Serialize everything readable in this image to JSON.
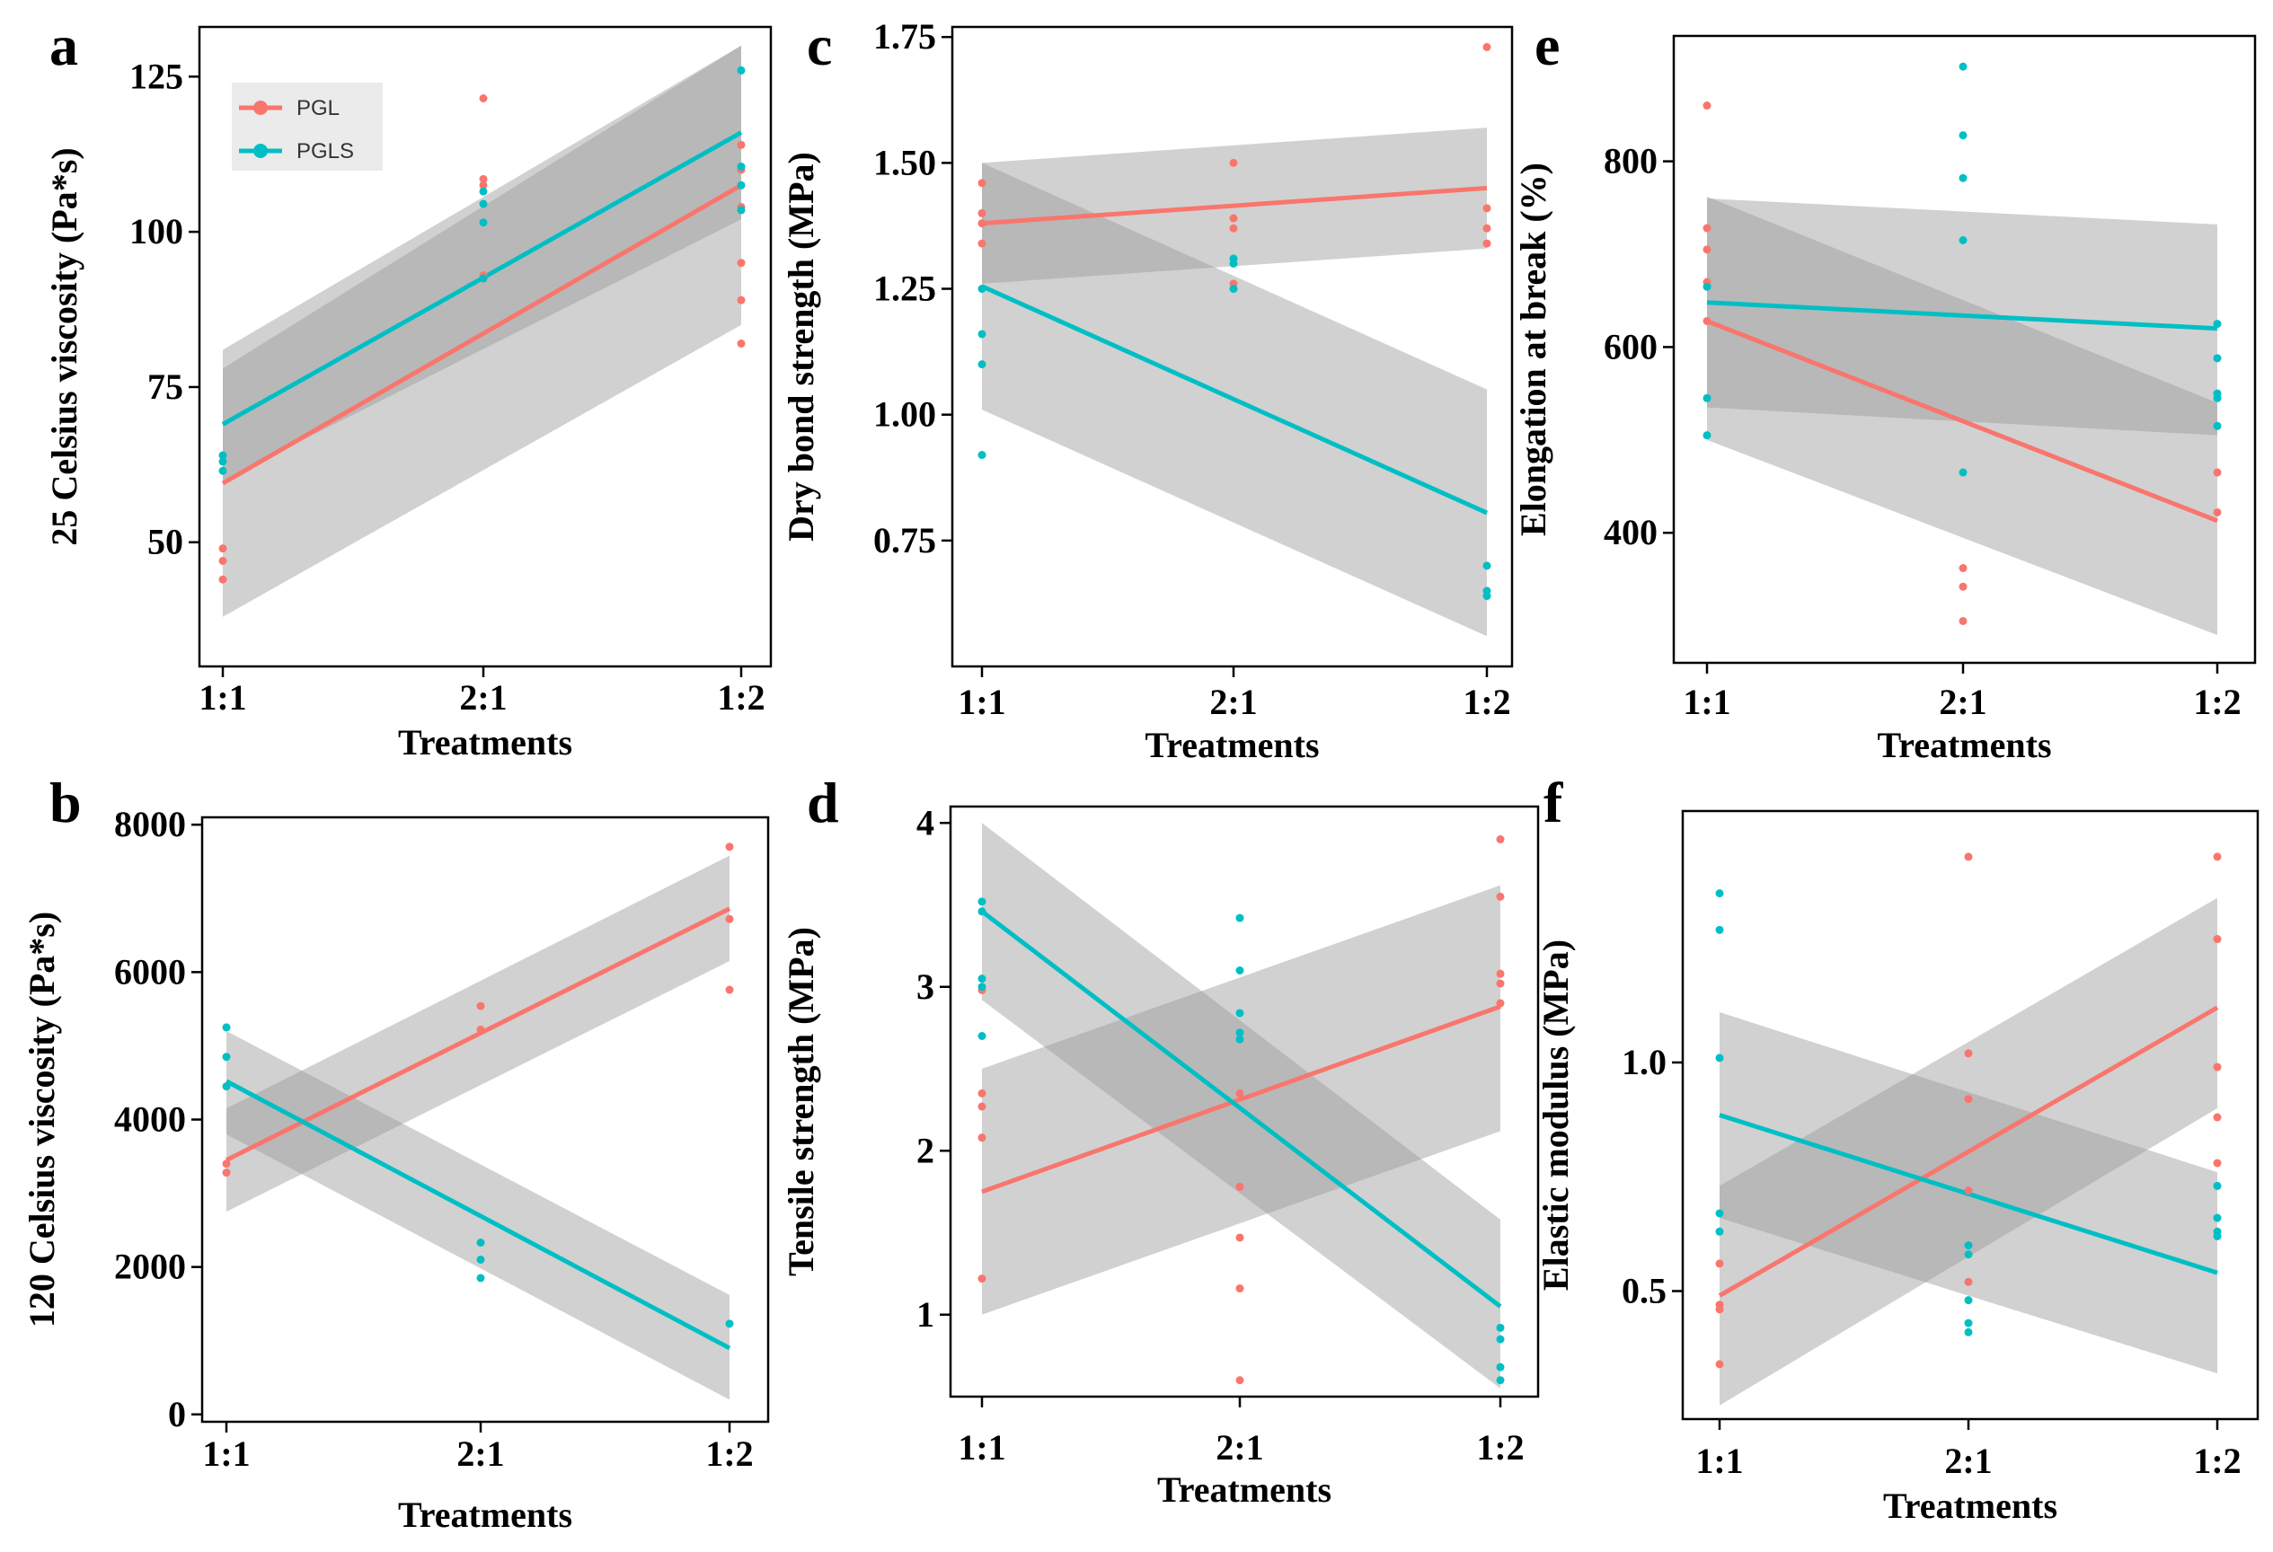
{
  "colors": {
    "pgl": "#F8766D",
    "pgls": "#00BFC4",
    "band": "#9a9a9a",
    "frame": "#000000"
  },
  "legend": {
    "items": [
      {
        "label": "PGL",
        "series": "PGL"
      },
      {
        "label": "PGLS",
        "series": "PGLS"
      }
    ]
  },
  "chart_data": [
    {
      "panel": "a",
      "type": "scatter",
      "xlabel": "Treatments",
      "ylabel": "25 Celsius viscosity (Pa*s)",
      "categories": [
        "1:1",
        "2:1",
        "1:2"
      ],
      "yticks": [
        50,
        75,
        100,
        125
      ],
      "ylim": [
        30,
        133
      ],
      "series": [
        {
          "name": "PGL",
          "points": [
            [
              1,
              49
            ],
            [
              1,
              47
            ],
            [
              1,
              44
            ],
            [
              2,
              121.5
            ],
            [
              2,
              108.5
            ],
            [
              2,
              107.5
            ],
            [
              2,
              93
            ],
            [
              3,
              114
            ],
            [
              3,
              110
            ],
            [
              3,
              104
            ],
            [
              3,
              95
            ],
            [
              3,
              89
            ],
            [
              3,
              82
            ]
          ],
          "fit": [
            59.5,
            107.5
          ],
          "ci_low": [
            38,
            85
          ],
          "ci_high": [
            81,
            130
          ]
        },
        {
          "name": "PGLS",
          "points": [
            [
              1,
              64
            ],
            [
              1,
              63
            ],
            [
              1,
              61.5
            ],
            [
              2,
              106.5
            ],
            [
              2,
              104.5
            ],
            [
              2,
              101.5
            ],
            [
              2,
              92.5
            ],
            [
              3,
              126
            ],
            [
              3,
              110.5
            ],
            [
              3,
              107.5
            ],
            [
              3,
              103.5
            ]
          ],
          "fit": [
            69,
            116
          ],
          "ci_low": [
            60,
            102
          ],
          "ci_high": [
            78,
            130
          ]
        }
      ]
    },
    {
      "panel": "b",
      "type": "scatter",
      "xlabel": "Treatments",
      "ylabel": "120 Celsius viscosity (Pa*s)",
      "categories": [
        "1:1",
        "2:1",
        "1:2"
      ],
      "yticks": [
        0,
        2000,
        4000,
        6000,
        8000
      ],
      "ylim": [
        -100,
        8100
      ],
      "series": [
        {
          "name": "PGL",
          "points": [
            [
              1,
              3400
            ],
            [
              1,
              3280
            ],
            [
              2,
              5540
            ],
            [
              2,
              5220
            ],
            [
              3,
              7700
            ],
            [
              3,
              6720
            ],
            [
              3,
              5760
            ]
          ],
          "fit": [
            3450,
            6860
          ],
          "ci_low": [
            2750,
            6150
          ],
          "ci_high": [
            4150,
            7580
          ]
        },
        {
          "name": "PGLS",
          "points": [
            [
              1,
              5250
            ],
            [
              1,
              4850
            ],
            [
              1,
              4450
            ],
            [
              2,
              2330
            ],
            [
              2,
              2100
            ],
            [
              2,
              1850
            ],
            [
              3,
              1230
            ]
          ],
          "fit": [
            4520,
            900
          ],
          "ci_low": [
            3800,
            200
          ],
          "ci_high": [
            5200,
            1620
          ]
        }
      ]
    },
    {
      "panel": "c",
      "type": "scatter",
      "xlabel": "Treatments",
      "ylabel": "Dry bond strength (MPa)",
      "categories": [
        "1:1",
        "2:1",
        "1:2"
      ],
      "yticks": [
        0.75,
        1.0,
        1.25,
        1.5,
        1.75
      ],
      "ylim": [
        0.5,
        1.77
      ],
      "series": [
        {
          "name": "PGL",
          "points": [
            [
              1,
              1.46
            ],
            [
              1,
              1.4
            ],
            [
              1,
              1.38
            ],
            [
              1,
              1.34
            ],
            [
              2,
              1.5
            ],
            [
              2,
              1.39
            ],
            [
              2,
              1.37
            ],
            [
              2,
              1.26
            ],
            [
              3,
              1.73
            ],
            [
              3,
              1.41
            ],
            [
              3,
              1.37
            ],
            [
              3,
              1.34
            ]
          ],
          "fit": [
            1.38,
            1.45
          ],
          "ci_low": [
            1.26,
            1.33
          ],
          "ci_high": [
            1.5,
            1.57
          ]
        },
        {
          "name": "PGLS",
          "points": [
            [
              1,
              1.25
            ],
            [
              1,
              1.16
            ],
            [
              1,
              1.1
            ],
            [
              1,
              0.92
            ],
            [
              2,
              1.31
            ],
            [
              2,
              1.3
            ],
            [
              2,
              1.25
            ],
            [
              3,
              0.7
            ],
            [
              3,
              0.65
            ],
            [
              3,
              0.64
            ]
          ],
          "fit": [
            1.255,
            0.805
          ],
          "ci_low": [
            1.01,
            0.56
          ],
          "ci_high": [
            1.5,
            1.05
          ]
        }
      ]
    },
    {
      "panel": "d",
      "type": "scatter",
      "xlabel": "Treatments",
      "ylabel": "Tensile strength (MPa)",
      "categories": [
        "1:1",
        "2:1",
        "1:2"
      ],
      "yticks": [
        1,
        2,
        3,
        4
      ],
      "ylim": [
        0.5,
        4.1
      ],
      "series": [
        {
          "name": "PGL",
          "points": [
            [
              1,
              2.98
            ],
            [
              1,
              2.35
            ],
            [
              1,
              2.27
            ],
            [
              1,
              2.08
            ],
            [
              1,
              1.22
            ],
            [
              2,
              2.35
            ],
            [
              2,
              1.78
            ],
            [
              2,
              1.47
            ],
            [
              2,
              1.16
            ],
            [
              2,
              0.6
            ],
            [
              3,
              3.9
            ],
            [
              3,
              3.55
            ],
            [
              3,
              3.08
            ],
            [
              3,
              3.02
            ],
            [
              3,
              2.9
            ]
          ],
          "fit": [
            1.75,
            2.88
          ],
          "ci_low": [
            1.0,
            2.12
          ],
          "ci_high": [
            2.5,
            3.62
          ]
        },
        {
          "name": "PGLS",
          "points": [
            [
              1,
              3.52
            ],
            [
              1,
              3.46
            ],
            [
              1,
              3.05
            ],
            [
              1,
              3.0
            ],
            [
              1,
              2.7
            ],
            [
              2,
              3.42
            ],
            [
              2,
              3.1
            ],
            [
              2,
              2.84
            ],
            [
              2,
              2.72
            ],
            [
              2,
              2.68
            ],
            [
              3,
              0.92
            ],
            [
              3,
              0.85
            ],
            [
              3,
              0.68
            ],
            [
              3,
              0.6
            ]
          ],
          "fit": [
            3.46,
            1.05
          ],
          "ci_low": [
            2.92,
            0.55
          ],
          "ci_high": [
            4.0,
            1.58
          ]
        }
      ]
    },
    {
      "panel": "e",
      "type": "scatter",
      "xlabel": "Treatments",
      "ylabel": "Elongation at break (%)",
      "categories": [
        "1:1",
        "2:1",
        "1:2"
      ],
      "yticks": [
        400,
        600,
        800
      ],
      "ylim": [
        260,
        935
      ],
      "series": [
        {
          "name": "PGL",
          "points": [
            [
              1,
              860
            ],
            [
              1,
              728
            ],
            [
              1,
              705
            ],
            [
              1,
              670
            ],
            [
              1,
              628
            ],
            [
              2,
              362
            ],
            [
              2,
              342
            ],
            [
              2,
              305
            ],
            [
              3,
              465
            ],
            [
              3,
              422
            ]
          ],
          "fit": [
            628,
            413
          ],
          "ci_low": [
            500,
            290
          ],
          "ci_high": [
            762,
            540
          ]
        },
        {
          "name": "PGLS",
          "points": [
            [
              1,
              665
            ],
            [
              1,
              545
            ],
            [
              1,
              505
            ],
            [
              2,
              902
            ],
            [
              2,
              828
            ],
            [
              2,
              782
            ],
            [
              2,
              715
            ],
            [
              2,
              465
            ],
            [
              3,
              625
            ],
            [
              3,
              588
            ],
            [
              3,
              550
            ],
            [
              3,
              545
            ],
            [
              3,
              515
            ]
          ],
          "fit": [
            648,
            620
          ],
          "ci_low": [
            535,
            505
          ],
          "ci_high": [
            760,
            732
          ]
        }
      ]
    },
    {
      "panel": "f",
      "type": "scatter",
      "xlabel": "Treatments",
      "ylabel": "Elastic modulus (MPa)",
      "categories": [
        "1:1",
        "2:1",
        "1:2"
      ],
      "yticks": [
        0.5,
        1.0
      ],
      "ylim": [
        0.22,
        1.55
      ],
      "series": [
        {
          "name": "PGL",
          "points": [
            [
              1,
              0.56
            ],
            [
              1,
              0.47
            ],
            [
              1,
              0.46
            ],
            [
              1,
              0.34
            ],
            [
              2,
              1.45
            ],
            [
              2,
              1.02
            ],
            [
              2,
              0.92
            ],
            [
              2,
              0.72
            ],
            [
              2,
              0.52
            ],
            [
              3,
              1.45
            ],
            [
              3,
              1.27
            ],
            [
              3,
              0.99
            ],
            [
              3,
              0.88
            ],
            [
              3,
              0.78
            ]
          ],
          "fit": [
            0.49,
            1.12
          ],
          "ci_low": [
            0.25,
            0.9
          ],
          "ci_high": [
            0.73,
            1.36
          ]
        },
        {
          "name": "PGLS",
          "points": [
            [
              1,
              1.37
            ],
            [
              1,
              1.29
            ],
            [
              1,
              1.01
            ],
            [
              1,
              0.67
            ],
            [
              1,
              0.63
            ],
            [
              2,
              0.6
            ],
            [
              2,
              0.58
            ],
            [
              2,
              0.48
            ],
            [
              2,
              0.43
            ],
            [
              2,
              0.41
            ],
            [
              3,
              0.73
            ],
            [
              3,
              0.66
            ],
            [
              3,
              0.63
            ],
            [
              3,
              0.62
            ]
          ],
          "fit": [
            0.885,
            0.54
          ],
          "ci_low": [
            0.66,
            0.32
          ],
          "ci_high": [
            1.11,
            0.76
          ]
        }
      ]
    }
  ]
}
